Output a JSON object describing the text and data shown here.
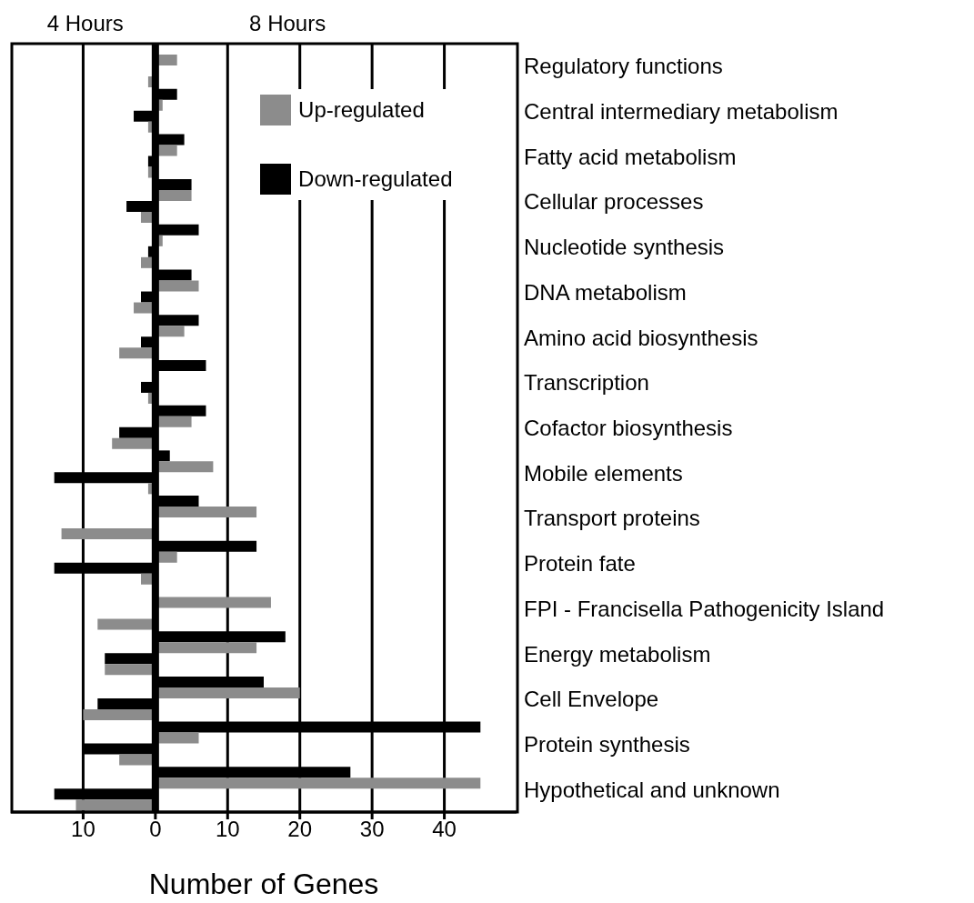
{
  "chart_data": {
    "type": "bar",
    "orientation": "horizontal",
    "xlabel": "Number of Genes",
    "categories": [
      "Regulatory functions",
      "Central intermediary metabolism",
      "Fatty acid metabolism",
      "Cellular processes",
      "Nucleotide synthesis",
      "DNA metabolism",
      "Amino acid biosynthesis",
      "Transcription",
      "Cofactor biosynthesis",
      "Mobile elements",
      "Transport proteins",
      "Protein fate",
      "FPI - Francisella Pathogenicity Island",
      "Energy metabolism",
      "Cell Envelope",
      "Protein synthesis",
      "Hypothetical and unknown"
    ],
    "series": [
      {
        "name": "Down-regulated",
        "color": "#000000",
        "values": [
          0,
          3,
          4,
          5,
          6,
          5,
          6,
          7,
          7,
          2,
          6,
          14,
          0,
          18,
          15,
          45,
          27
        ]
      },
      {
        "name": "Up-regulated",
        "color": "#8c8c8c",
        "values": [
          3,
          1,
          3,
          5,
          1,
          6,
          4,
          0,
          5,
          8,
          14,
          3,
          16,
          14,
          20,
          6,
          45
        ]
      },
      {
        "color": "#000000",
        "values": [
          0,
          -3,
          -1,
          -4,
          -1,
          -2,
          -2,
          -2,
          -5,
          -14,
          0,
          -14,
          0,
          -7,
          -8,
          -10,
          -14
        ]
      },
      {
        "color": "#8c8c8c",
        "values": [
          -1,
          -1,
          -1,
          -2,
          -2,
          -3,
          -5,
          -1,
          -6,
          -1,
          -13,
          -2,
          -8,
          -7,
          -10,
          -5,
          -11
        ]
      }
    ],
    "xlim": [
      -20,
      50
    ],
    "xticks": [
      {
        "value": -10,
        "label": "10"
      },
      0,
      10,
      20,
      30,
      40
    ],
    "grid": "x",
    "legend": "top",
    "ref_lines": [
      {
        "axis": "x",
        "value": 0,
        "color": "#000000"
      }
    ],
    "annotations": [
      "4 Hours",
      "8 Hours"
    ]
  }
}
